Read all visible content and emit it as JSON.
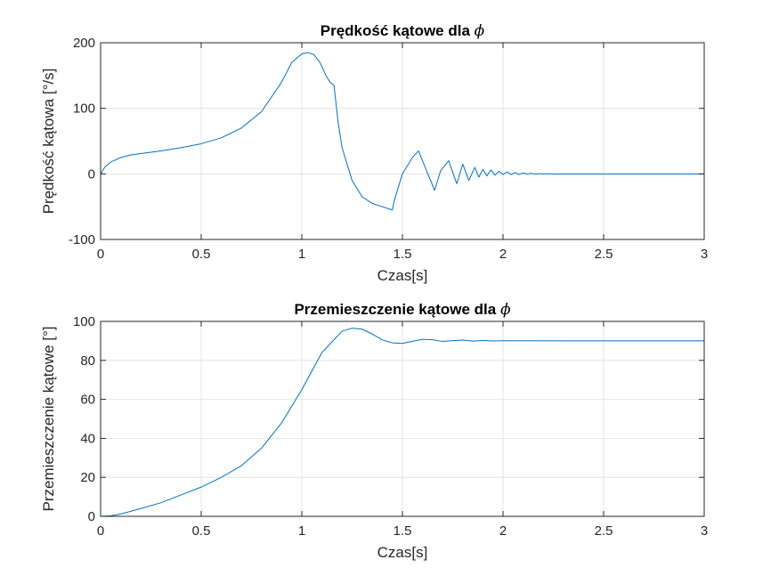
{
  "colors": {
    "series": "#0072BD",
    "grid": "#dfdfdf",
    "axes": "#262626"
  },
  "chart_data": [
    {
      "type": "line",
      "title": "Prędkość kątowe dla",
      "title_symbol": "ϕ",
      "xlabel": "Czas[s]",
      "ylabel": "Prędkość kątowa [°/s]",
      "xlim": [
        0,
        3
      ],
      "ylim": [
        -100,
        200
      ],
      "xticks": [
        0,
        0.5,
        1,
        1.5,
        2,
        2.5,
        3
      ],
      "xtick_labels": [
        "0",
        "0.5",
        "1",
        "1.5",
        "2",
        "2.5",
        "3"
      ],
      "yticks": [
        -100,
        0,
        100,
        200
      ],
      "ytick_labels": [
        "-100",
        "0",
        "100",
        "200"
      ],
      "grid": true,
      "series": [
        {
          "x": [
            0,
            0.02,
            0.05,
            0.1,
            0.15,
            0.2,
            0.3,
            0.4,
            0.5,
            0.6,
            0.7,
            0.8,
            0.9,
            0.95,
            1.0,
            1.03,
            1.06,
            1.09,
            1.12,
            1.14,
            1.16,
            1.18,
            1.2,
            1.25,
            1.3,
            1.35,
            1.4,
            1.45,
            1.46,
            1.5,
            1.55,
            1.58,
            1.62,
            1.66,
            1.69,
            1.73,
            1.77,
            1.8,
            1.83,
            1.86,
            1.88,
            1.9,
            1.92,
            1.94,
            1.96,
            1.98,
            2.0,
            2.02,
            2.04,
            2.06,
            2.08,
            2.1,
            2.12,
            2.14,
            2.16,
            2.18,
            2.2,
            2.22,
            2.25,
            2.3,
            2.4,
            2.5,
            3.0
          ],
          "y": [
            0,
            10,
            18,
            25,
            29,
            31,
            35,
            40,
            46,
            55,
            70,
            95,
            140,
            170,
            183,
            185,
            182,
            170,
            150,
            140,
            135,
            80,
            40,
            -10,
            -35,
            -45,
            -50,
            -55,
            -40,
            0,
            25,
            35,
            5,
            -25,
            5,
            20,
            -15,
            15,
            -10,
            10,
            -5,
            7,
            -3,
            6,
            -2,
            4,
            -1,
            3,
            -1,
            2,
            -1,
            1.5,
            -0.5,
            1,
            -0.5,
            0.5,
            0,
            0.3,
            0,
            0,
            0,
            0,
            0
          ]
        }
      ]
    },
    {
      "type": "line",
      "title": "Przemieszczenie kątowe dla",
      "title_symbol": "ϕ",
      "xlabel": "Czas[s]",
      "ylabel": "Przemieszczenie kątowe [°]",
      "xlim": [
        0,
        3
      ],
      "ylim": [
        0,
        100
      ],
      "xticks": [
        0,
        0.5,
        1,
        1.5,
        2,
        2.5,
        3
      ],
      "xtick_labels": [
        "0",
        "0.5",
        "1",
        "1.5",
        "2",
        "2.5",
        "3"
      ],
      "yticks": [
        0,
        20,
        40,
        60,
        80,
        100
      ],
      "ytick_labels": [
        "0",
        "20",
        "40",
        "60",
        "80",
        "100"
      ],
      "grid": true,
      "series": [
        {
          "x": [
            0,
            0.05,
            0.1,
            0.2,
            0.3,
            0.4,
            0.5,
            0.6,
            0.7,
            0.8,
            0.9,
            1.0,
            1.1,
            1.2,
            1.25,
            1.3,
            1.35,
            1.4,
            1.45,
            1.5,
            1.55,
            1.6,
            1.65,
            1.7,
            1.75,
            1.8,
            1.85,
            1.9,
            1.95,
            2.0,
            2.5,
            3.0
          ],
          "y": [
            0,
            0.3,
            1.2,
            4,
            7,
            11,
            15,
            20,
            26,
            35,
            48,
            65,
            84,
            95,
            96.5,
            96,
            93.5,
            90.5,
            89,
            88.7,
            89.8,
            90.8,
            90.6,
            89.7,
            90.1,
            90.4,
            89.9,
            90.2,
            89.95,
            90.05,
            90,
            90
          ]
        }
      ]
    }
  ]
}
